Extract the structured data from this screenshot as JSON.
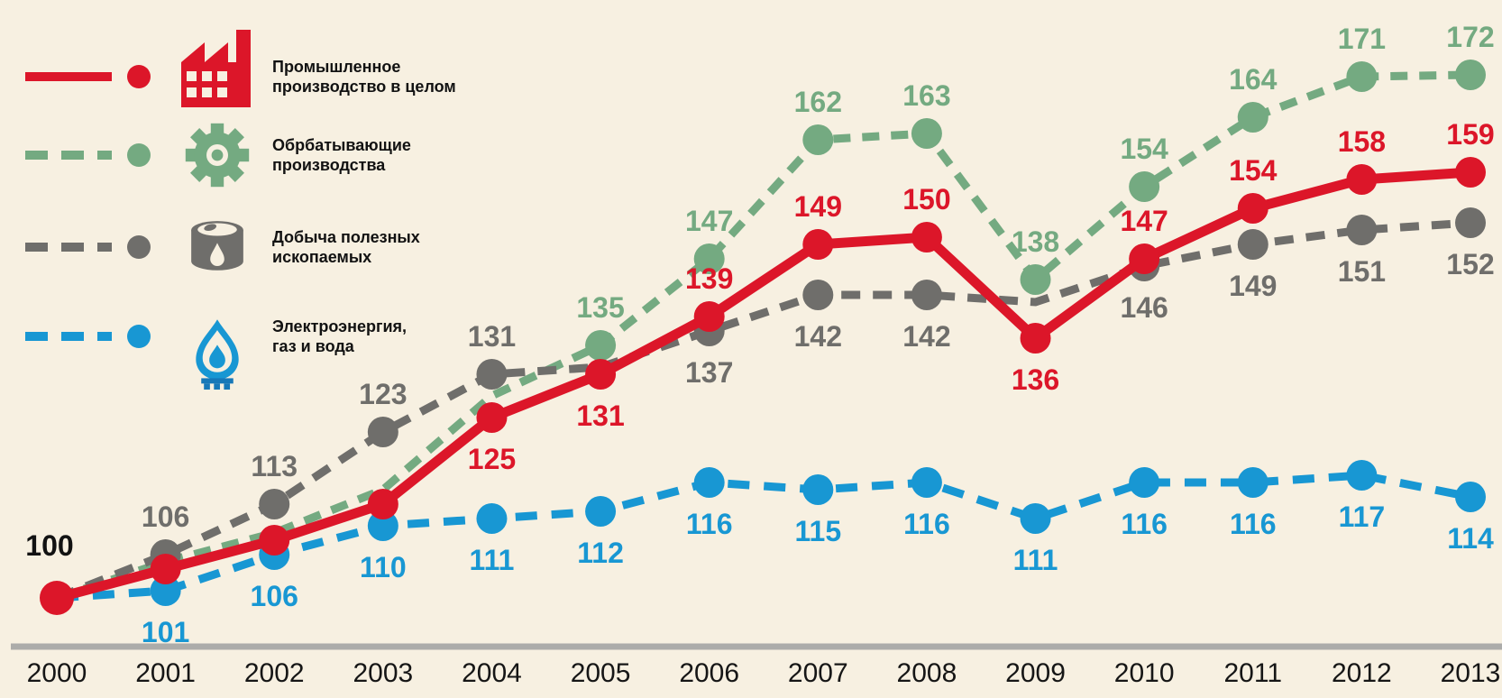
{
  "colors": {
    "red": "#DC1629",
    "green": "#74AA81",
    "gray": "#6F6E6B",
    "blue": "#1897D3",
    "blue_dark": "#1778B8",
    "background": "#F7F0E1",
    "axis": "#ACACAA",
    "text": "#121212"
  },
  "legend": {
    "items": [
      {
        "line1": "Промышленное",
        "line2": "производство в целом",
        "icon": "factory-icon",
        "style": "solid"
      },
      {
        "line1": "Обрбатывающие",
        "line2": "производства",
        "icon": "gear-icon",
        "style": "dashed"
      },
      {
        "line1": "Добыча полезных",
        "line2": "ископаемых",
        "icon": "oil-barrel-icon",
        "style": "dashed"
      },
      {
        "line1": "Электроэнергия,",
        "line2": "газ и вода",
        "icon": "gas-flame-icon",
        "style": "dashed"
      }
    ]
  },
  "chart_data": {
    "type": "line",
    "x_labels": [
      "2000",
      "2001",
      "2002",
      "2003",
      "2004",
      "2005",
      "2006",
      "2007",
      "2008",
      "2009",
      "2010",
      "2011",
      "2012",
      "2013"
    ],
    "baseline_label": "100",
    "ylim": [
      100,
      175
    ],
    "grid": false,
    "legend_position": "top-left",
    "series": [
      {
        "id": "industrial-production",
        "name": "Промышленное производство в целом",
        "color": "#DC1629",
        "line_style": "solid",
        "values": [
          100,
          104,
          108,
          113,
          125,
          131,
          139,
          149,
          150,
          136,
          147,
          154,
          158,
          159
        ],
        "labels": [
          null,
          null,
          null,
          null,
          "125",
          "131",
          "139",
          "149",
          "150",
          "136",
          "147",
          "154",
          "158",
          "159"
        ],
        "label_side": [
          null,
          null,
          null,
          null,
          "below",
          "below",
          "above",
          "above",
          "above",
          "below",
          "above",
          "above",
          "above",
          "above"
        ],
        "markers": [
          true,
          true,
          true,
          true,
          true,
          true,
          true,
          true,
          true,
          true,
          true,
          true,
          true,
          true
        ]
      },
      {
        "id": "manufacturing",
        "name": "Обрбатывающие производства",
        "color": "#74AA81",
        "line_style": "dashed",
        "values": [
          100,
          105,
          109,
          115,
          128,
          135,
          147,
          162,
          163,
          138,
          154,
          164,
          171,
          172
        ],
        "labels": [
          null,
          null,
          null,
          null,
          null,
          "135",
          "147",
          "162",
          "163",
          "138",
          "154",
          "164",
          "171",
          "172"
        ],
        "label_side": [
          null,
          null,
          null,
          null,
          null,
          "above",
          "above",
          "above",
          "above",
          "above",
          "above",
          "above",
          "above",
          "above"
        ],
        "markers": [
          true,
          false,
          false,
          false,
          false,
          true,
          true,
          true,
          true,
          true,
          true,
          true,
          true,
          true
        ]
      },
      {
        "id": "mining",
        "name": "Добыча полезных ископаемых",
        "color": "#6F6E6B",
        "line_style": "dashed",
        "values": [
          100,
          106,
          113,
          123,
          131,
          132,
          137,
          142,
          142,
          141,
          146,
          149,
          151,
          152
        ],
        "labels": [
          null,
          "106",
          "113",
          "123",
          "131",
          null,
          "137",
          "142",
          "142",
          null,
          "146",
          "149",
          "151",
          "152"
        ],
        "label_side": [
          null,
          "above",
          "above",
          "above",
          "above",
          null,
          "below",
          "below",
          "below",
          null,
          "below",
          "below",
          "below",
          "below"
        ],
        "markers": [
          true,
          true,
          true,
          true,
          true,
          false,
          true,
          true,
          true,
          false,
          true,
          true,
          true,
          true
        ]
      },
      {
        "id": "utilities",
        "name": "Электроэнергия, газ и вода",
        "color": "#1897D3",
        "line_style": "dashed",
        "values": [
          100,
          101,
          106,
          110,
          111,
          112,
          116,
          115,
          116,
          111,
          116,
          116,
          117,
          114
        ],
        "labels": [
          null,
          "101",
          "106",
          "110",
          "111",
          "112",
          "116",
          "115",
          "116",
          "111",
          "116",
          "116",
          "117",
          "114"
        ],
        "label_side": [
          null,
          "below",
          "below",
          "below",
          "below",
          "below",
          "below",
          "below",
          "below",
          "below",
          "below",
          "below",
          "below",
          "below"
        ],
        "markers": [
          true,
          true,
          true,
          true,
          true,
          true,
          true,
          true,
          true,
          true,
          true,
          true,
          true,
          true
        ]
      }
    ]
  }
}
